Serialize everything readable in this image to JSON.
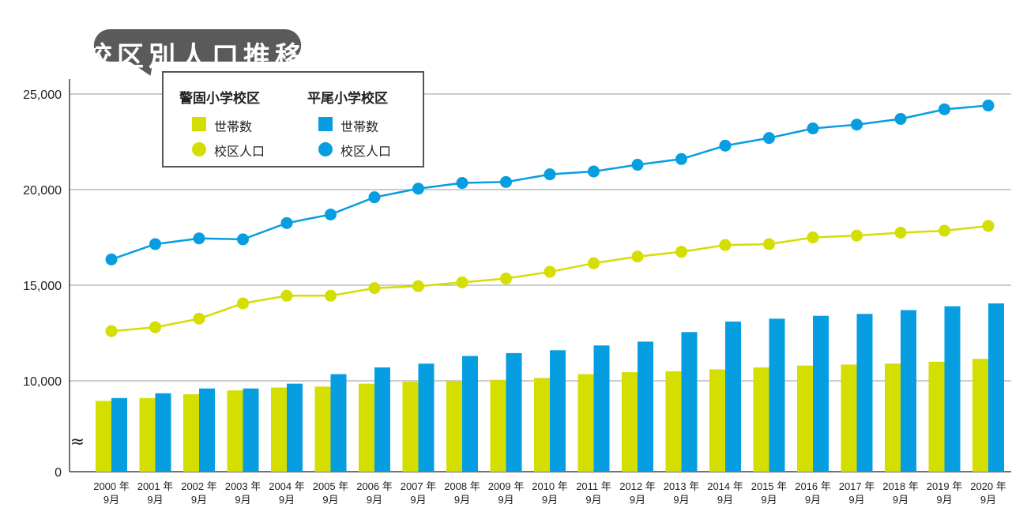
{
  "title": "・校区別人口推移",
  "colors": {
    "keigo": "#d4de00",
    "hirao": "#069ee0",
    "bubble": "#5a5a5a",
    "grid": "#9a9a9a",
    "text": "#222222"
  },
  "legend": {
    "keigo": {
      "name": "警固小学校区",
      "households": "世帯数",
      "population": "校区人口"
    },
    "hirao": {
      "name": "平尾小学校区",
      "households": "世帯数",
      "population": "校区人口"
    }
  },
  "chart_data": {
    "type": "bar+line",
    "title": "・校区別人口推移",
    "y_ticks": [
      "0",
      "10,000",
      "15,000",
      "20,000",
      "25,000"
    ],
    "y_break": "≈",
    "x_year_labels": [
      "2000 年",
      "2001 年",
      "2002 年",
      "2003 年",
      "2004 年",
      "2005 年",
      "2006 年",
      "2007 年",
      "2008 年",
      "2009 年",
      "2010 年",
      "2011 年",
      "2012 年",
      "2013 年",
      "2014 年",
      "2015 年",
      "2016 年",
      "2017 年",
      "2018 年",
      "2019 年",
      "2020 年"
    ],
    "x_month_label": "9月",
    "series": [
      {
        "name": "警固小学校区 世帯数",
        "kind": "bar",
        "color_key": "keigo",
        "values": [
          8950,
          9100,
          9300,
          9500,
          9650,
          9700,
          9850,
          9950,
          10000,
          10050,
          10150,
          10350,
          10450,
          10500,
          10600,
          10700,
          10800,
          10850,
          10900,
          11000,
          11150
        ]
      },
      {
        "name": "平尾小学校区 世帯数",
        "kind": "bar",
        "color_key": "hirao",
        "values": [
          9100,
          9350,
          9600,
          9600,
          9850,
          10350,
          10700,
          10900,
          11300,
          11450,
          11600,
          11850,
          12050,
          12550,
          13100,
          13250,
          13400,
          13500,
          13700,
          13900,
          14050
        ]
      },
      {
        "name": "警固小学校区 校区人口",
        "kind": "line",
        "color_key": "keigo",
        "values": [
          12600,
          12800,
          13250,
          14050,
          14450,
          14450,
          14850,
          14950,
          15150,
          15350,
          15700,
          16150,
          16500,
          16750,
          17100,
          17150,
          17500,
          17600,
          17750,
          17850,
          18100
        ]
      },
      {
        "name": "平尾小学校区 校区人口",
        "kind": "line",
        "color_key": "hirao",
        "values": [
          16350,
          17150,
          17450,
          17400,
          18250,
          18700,
          19600,
          20050,
          20350,
          20400,
          20800,
          20950,
          21300,
          21600,
          22300,
          22700,
          23200,
          23400,
          23700,
          24200,
          24400
        ]
      }
    ]
  }
}
